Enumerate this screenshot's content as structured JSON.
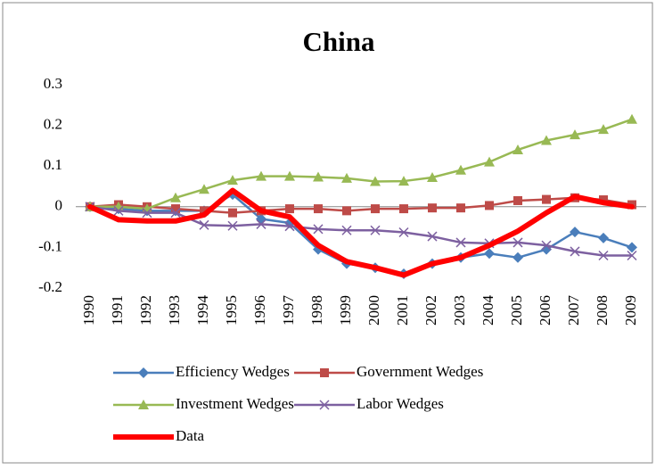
{
  "chart_data": {
    "type": "line",
    "title": "China",
    "categories": [
      "1990",
      "1991",
      "1992",
      "1993",
      "1994",
      "1995",
      "1996",
      "1997",
      "1998",
      "1999",
      "2000",
      "2001",
      "2002",
      "2003",
      "2004",
      "2005",
      "2006",
      "2007",
      "2008",
      "2009"
    ],
    "series": [
      {
        "name": "Efficiency Wedges",
        "color": "#4a7ebb",
        "marker": "diamond",
        "values": [
          0,
          -0.005,
          -0.01,
          -0.01,
          -0.01,
          0.03,
          -0.03,
          -0.04,
          -0.105,
          -0.14,
          -0.15,
          -0.165,
          -0.14,
          -0.125,
          -0.115,
          -0.125,
          -0.105,
          -0.062,
          -0.077,
          -0.1
        ]
      },
      {
        "name": "Government Wedges",
        "color": "#be4b48",
        "marker": "square",
        "values": [
          0,
          0.005,
          0,
          -0.005,
          -0.01,
          -0.015,
          -0.01,
          -0.005,
          -0.005,
          -0.01,
          -0.005,
          -0.005,
          -0.003,
          -0.003,
          0.003,
          0.015,
          0.018,
          0.022,
          0.017,
          0.005
        ]
      },
      {
        "name": "Investment Wedges",
        "color": "#98b954",
        "marker": "triangle",
        "values": [
          0,
          0,
          -0.005,
          0.022,
          0.043,
          0.065,
          0.075,
          0.075,
          0.073,
          0.07,
          0.062,
          0.063,
          0.072,
          0.09,
          0.11,
          0.14,
          0.163,
          0.177,
          0.19,
          0.215
        ]
      },
      {
        "name": "Labor Wedges",
        "color": "#7d60a0",
        "marker": "x",
        "values": [
          0,
          -0.01,
          -0.015,
          -0.015,
          -0.045,
          -0.047,
          -0.043,
          -0.048,
          -0.055,
          -0.058,
          -0.058,
          -0.063,
          -0.073,
          -0.088,
          -0.09,
          -0.088,
          -0.095,
          -0.11,
          -0.12,
          -0.12
        ]
      },
      {
        "name": "Data",
        "color": "#ff0000",
        "marker": "none",
        "values": [
          0,
          -0.032,
          -0.035,
          -0.035,
          -0.02,
          0.04,
          -0.01,
          -0.025,
          -0.095,
          -0.135,
          -0.15,
          -0.168,
          -0.14,
          -0.125,
          -0.095,
          -0.06,
          -0.015,
          0.025,
          0.01,
          0
        ]
      }
    ],
    "ylim": [
      -0.2,
      0.3
    ],
    "yticks": [
      -0.2,
      -0.1,
      0,
      0.1,
      0.2,
      0.3
    ],
    "grid": false
  }
}
